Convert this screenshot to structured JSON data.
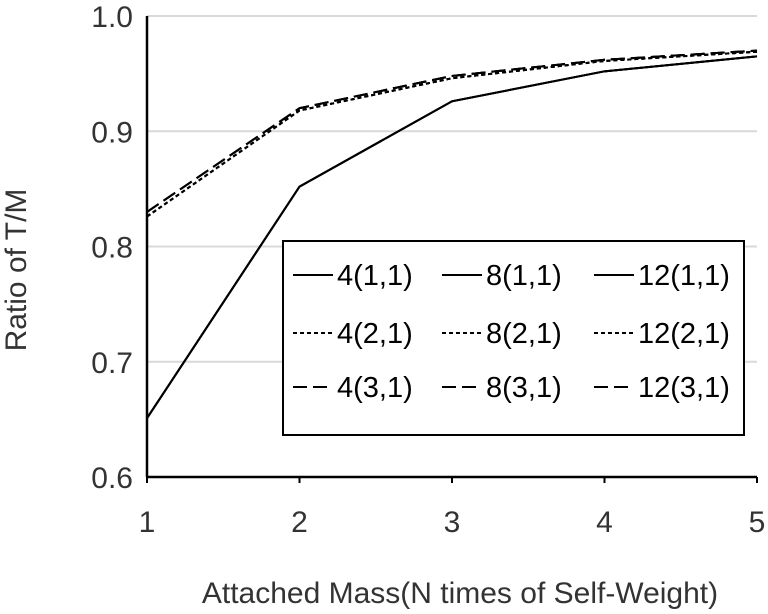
{
  "chart_data": {
    "type": "line",
    "title": "",
    "xlabel": "Attached Mass(N times of Self-Weight)",
    "ylabel": "Ratio of T/M",
    "x": [
      1,
      2,
      3,
      4,
      5
    ],
    "x_tick_labels": [
      "1",
      "2",
      "3",
      "4",
      "5"
    ],
    "y_tick_labels": [
      "0.6",
      "0.7",
      "0.8",
      "0.9",
      "1.0"
    ],
    "xlim": [
      1,
      5
    ],
    "ylim": [
      0.6,
      1.0
    ],
    "grid": "horizontal",
    "legend_position": "center-right",
    "series": [
      {
        "name": "4(1,1)",
        "style": "solid",
        "values": [
          0.651,
          0.852,
          0.926,
          0.952,
          0.965
        ]
      },
      {
        "name": "8(1,1)",
        "style": "solid",
        "values": [
          0.651,
          0.852,
          0.926,
          0.952,
          0.965
        ]
      },
      {
        "name": "12(1,1)",
        "style": "solid",
        "values": [
          0.651,
          0.852,
          0.926,
          0.952,
          0.965
        ]
      },
      {
        "name": "4(2,1)",
        "style": "dotted",
        "values": [
          0.826,
          0.918,
          0.946,
          0.961,
          0.969
        ]
      },
      {
        "name": "8(2,1)",
        "style": "dotted",
        "values": [
          0.826,
          0.918,
          0.946,
          0.961,
          0.969
        ]
      },
      {
        "name": "12(2,1)",
        "style": "dotted",
        "values": [
          0.826,
          0.918,
          0.946,
          0.961,
          0.969
        ]
      },
      {
        "name": "4(3,1)",
        "style": "dashed",
        "values": [
          0.83,
          0.92,
          0.948,
          0.962,
          0.97
        ]
      },
      {
        "name": "8(3,1)",
        "style": "dashed",
        "values": [
          0.83,
          0.92,
          0.948,
          0.962,
          0.97
        ]
      },
      {
        "name": "12(3,1)",
        "style": "dashed",
        "values": [
          0.83,
          0.92,
          0.948,
          0.962,
          0.97
        ]
      }
    ],
    "colors": {
      "line": "#000000",
      "grid": "#d9d9d9",
      "text": "#333333"
    }
  }
}
